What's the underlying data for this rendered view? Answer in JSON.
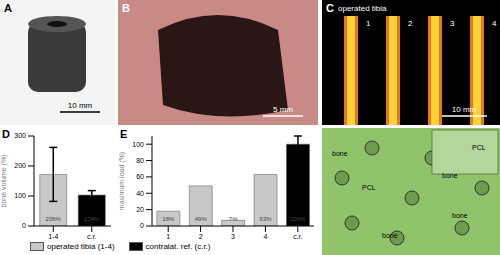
{
  "panels": {
    "A": {
      "label": "A",
      "scale_bar": "10 mm"
    },
    "B": {
      "label": "B",
      "scale_bar": "5 mm"
    },
    "C": {
      "label": "C",
      "title": "operated tibia",
      "samples": [
        "1",
        "2",
        "3",
        "4"
      ],
      "scale_bar": "10 mm"
    },
    "F": {
      "labels": [
        "bone",
        "PCL",
        "bone",
        "bone",
        "PCL",
        "bone"
      ]
    }
  },
  "chart_data": [
    {
      "type": "bar",
      "panel": "D",
      "y_label": "bone volume (%)",
      "categories": [
        "1-4",
        "c.r."
      ],
      "values": [
        172,
        103
      ],
      "errors": [
        90,
        15
      ],
      "colors": [
        "#c8c8c8",
        "#000000"
      ],
      "annotations": [
        "206%",
        "224%"
      ],
      "ylim": [
        0,
        300
      ],
      "yticks": [
        0,
        100,
        200,
        300
      ]
    },
    {
      "type": "bar",
      "panel": "E",
      "y_label": "maximum load (%)",
      "categories": [
        "1",
        "2",
        "3",
        "4",
        "c.r."
      ],
      "values": [
        18,
        49,
        7,
        63,
        100
      ],
      "errors": [
        null,
        null,
        null,
        null,
        10
      ],
      "colors": [
        "#c8c8c8",
        "#c8c8c8",
        "#c8c8c8",
        "#c8c8c8",
        "#000000"
      ],
      "data_labels": true,
      "value_labels": [
        "18%",
        "49%",
        "7%",
        "63%",
        "100%"
      ],
      "ylim": [
        0,
        110
      ],
      "yticks": [
        0,
        20,
        40,
        60,
        80,
        100
      ]
    }
  ],
  "shared_legend": [
    {
      "name": "operated tibia (1-4)",
      "color": "#c8c8c8"
    },
    {
      "name": "contralat. ref. (c.r.)",
      "color": "#000000"
    }
  ]
}
